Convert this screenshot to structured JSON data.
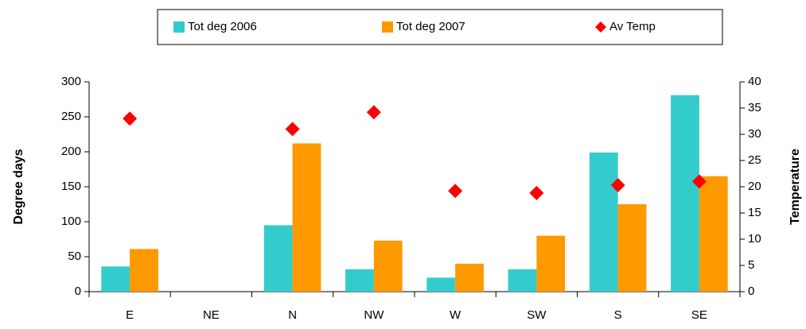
{
  "chart_data": {
    "type": "bar",
    "categories": [
      "E",
      "NE",
      "N",
      "NW",
      "W",
      "SW",
      "S",
      "SE"
    ],
    "series": [
      {
        "name": "Tot deg 2006",
        "color": "#33cccc",
        "values": [
          36,
          0,
          95,
          32,
          20,
          32,
          199,
          281
        ]
      },
      {
        "name": "Tot deg 2007",
        "color": "#ff9900",
        "values": [
          61,
          0,
          212,
          73,
          40,
          80,
          125,
          165
        ]
      },
      {
        "name": "Av Temp",
        "color": "#ff0000",
        "type": "scatter",
        "marker": "diamond",
        "axis": "y2",
        "values": [
          33,
          null,
          31,
          34.2,
          19.2,
          18.8,
          20.3,
          21
        ]
      }
    ],
    "y_label": "Degree days",
    "y2_label": "Temperature",
    "ylim": [
      0,
      300
    ],
    "yticks": [
      0,
      50,
      100,
      150,
      200,
      250,
      300
    ],
    "y2lim": [
      0,
      40
    ],
    "y2ticks": [
      0,
      5,
      10,
      15,
      20,
      25,
      30,
      35,
      40
    ],
    "legend": "top",
    "grid": false
  }
}
